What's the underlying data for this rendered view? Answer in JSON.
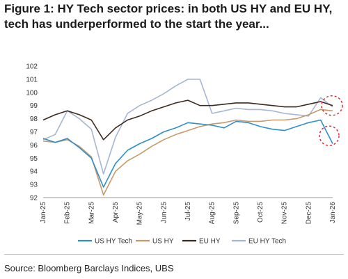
{
  "figure": {
    "title": "Figure 1: HY Tech sector prices: in both US HY and EU HY, tech has underperformed to the start the year...",
    "source": "Source: Bloomberg Barclays Indices, UBS"
  },
  "chart_data": {
    "type": "line",
    "title": "",
    "xlabel": "",
    "ylabel": "",
    "ylim": [
      92,
      102
    ],
    "yticks": [
      92,
      93,
      94,
      95,
      96,
      97,
      98,
      99,
      100,
      101,
      102
    ],
    "x_tick_labels": [
      "Jan-25",
      "Feb-25",
      "Mar-25",
      "Apr-25",
      "May-25",
      "Jun-25",
      "Jul-25",
      "Aug-25",
      "Sep-25",
      "Oct-25",
      "Nov-25",
      "Dec-25",
      "Jan-26"
    ],
    "x": [
      "Jan-25",
      "Jan-25b",
      "Feb-25",
      "Feb-25b",
      "Mar-25",
      "Mar-25b",
      "Apr-25",
      "Apr-25b",
      "May-25",
      "May-25b",
      "Jun-25",
      "Jun-25b",
      "Jul-25",
      "Jul-25b",
      "Aug-25",
      "Aug-25b",
      "Sep-25",
      "Sep-25b",
      "Oct-25",
      "Oct-25b",
      "Nov-25",
      "Nov-25b",
      "Dec-25",
      "Dec-25b",
      "Jan-26"
    ],
    "grid": false,
    "legend_position": "bottom",
    "series": [
      {
        "name": "US HY Tech",
        "color": "#2e8fc9",
        "values": [
          96.5,
          96.2,
          96.5,
          95.8,
          95.0,
          92.8,
          94.6,
          95.6,
          96.1,
          96.5,
          97.0,
          97.3,
          97.7,
          97.6,
          97.5,
          97.3,
          97.8,
          97.7,
          97.4,
          97.2,
          97.1,
          97.4,
          97.7,
          97.9,
          96.1
        ]
      },
      {
        "name": "US HY",
        "color": "#c49a6c",
        "values": [
          96.3,
          96.2,
          96.4,
          95.9,
          95.1,
          92.2,
          94.0,
          94.8,
          95.3,
          95.9,
          96.4,
          96.8,
          97.1,
          97.4,
          97.6,
          97.7,
          97.9,
          97.8,
          97.8,
          97.9,
          97.9,
          98.0,
          98.3,
          98.7,
          98.6
        ]
      },
      {
        "name": "EU HY",
        "color": "#3d2a1f",
        "values": [
          97.9,
          98.3,
          98.6,
          98.3,
          97.9,
          96.4,
          97.3,
          97.9,
          98.2,
          98.6,
          98.9,
          99.2,
          99.4,
          99.0,
          99.0,
          99.1,
          99.2,
          99.2,
          99.1,
          99.0,
          98.9,
          98.9,
          99.1,
          99.3,
          99.0
        ]
      },
      {
        "name": "EU HY Tech",
        "color": "#a6b5d3",
        "values": [
          96.4,
          96.8,
          98.6,
          98.0,
          97.2,
          93.8,
          96.6,
          98.4,
          99.0,
          99.4,
          99.9,
          100.5,
          101.0,
          101.0,
          98.4,
          98.6,
          98.8,
          98.7,
          98.7,
          98.6,
          98.4,
          98.3,
          98.2,
          99.6,
          98.9
        ]
      }
    ],
    "annotations": [
      "dashed-circle-top-right",
      "dashed-circle-bottom-right"
    ]
  }
}
